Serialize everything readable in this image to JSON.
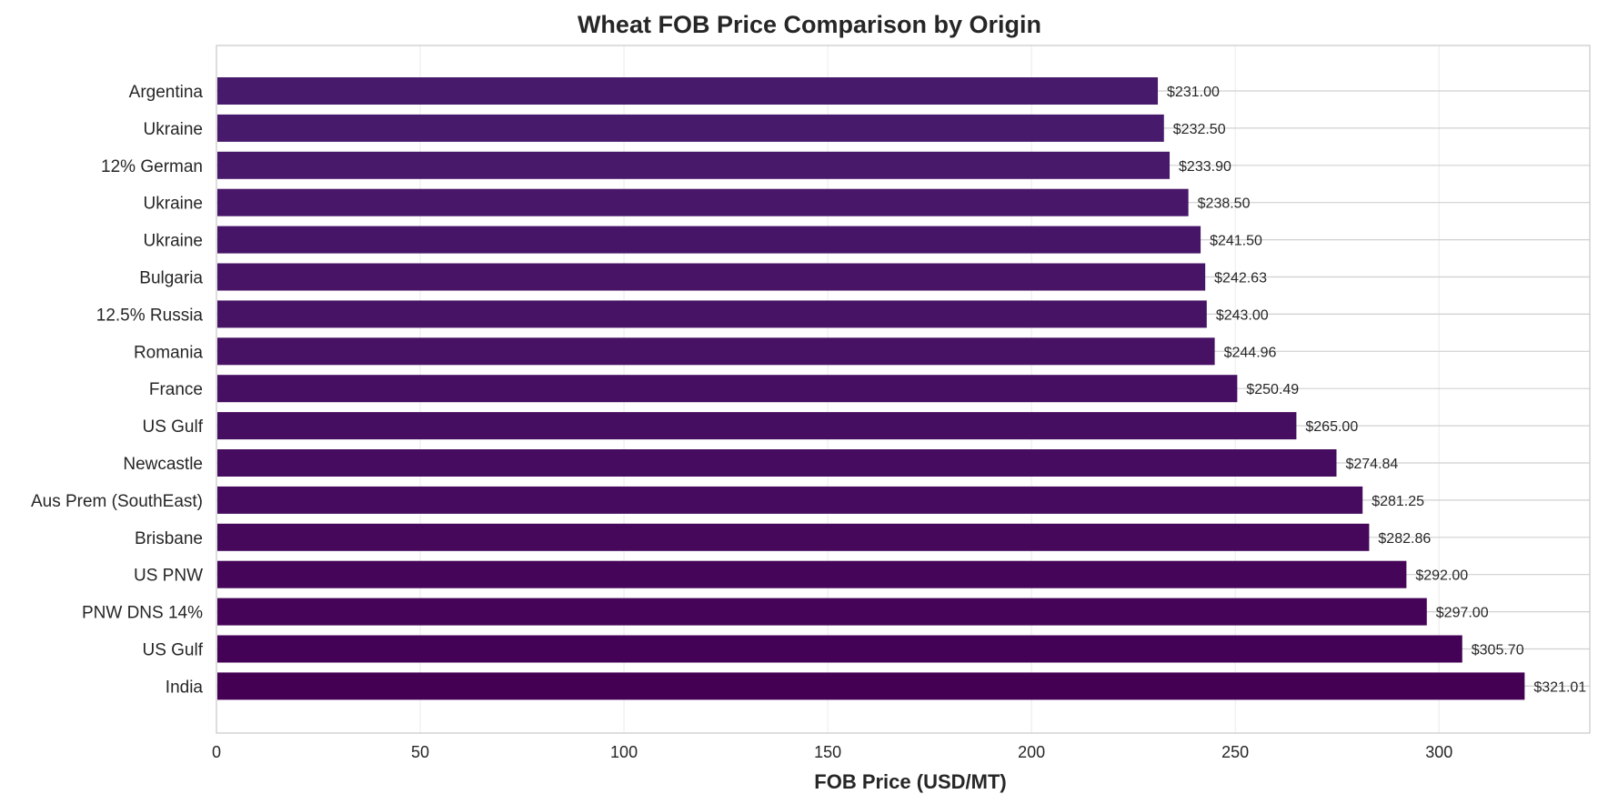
{
  "chart_data": {
    "type": "bar",
    "orientation": "horizontal",
    "title": "Wheat FOB Price Comparison by Origin",
    "xlabel": "FOB Price (USD/MT)",
    "ylabel": "",
    "xlim": [
      0,
      337
    ],
    "xticks": [
      0,
      50,
      100,
      150,
      200,
      250,
      300
    ],
    "grid": true,
    "value_label_prefix": "$",
    "value_label_decimals": 2,
    "categories": [
      "Argentina",
      "Ukraine",
      "12% German",
      "Ukraine",
      "Ukraine",
      "Bulgaria",
      "12.5% Russia",
      "Romania",
      "France",
      "US Gulf",
      "Newcastle",
      "Aus Prem (SouthEast)",
      "Brisbane",
      "US PNW",
      "PNW DNS 14%",
      "US Gulf",
      "India"
    ],
    "values": [
      231.0,
      232.5,
      233.9,
      238.5,
      241.5,
      242.63,
      243.0,
      244.96,
      250.49,
      265.0,
      274.84,
      281.25,
      282.86,
      292.0,
      297.0,
      305.7,
      321.01
    ],
    "colors": [
      "#481a6c",
      "#481a6c",
      "#48186a",
      "#481769",
      "#471567",
      "#471466",
      "#471365",
      "#471164",
      "#460f62",
      "#460e61",
      "#460c5f",
      "#460b5e",
      "#45085b",
      "#450559",
      "#450458",
      "#440256",
      "#440154"
    ]
  }
}
